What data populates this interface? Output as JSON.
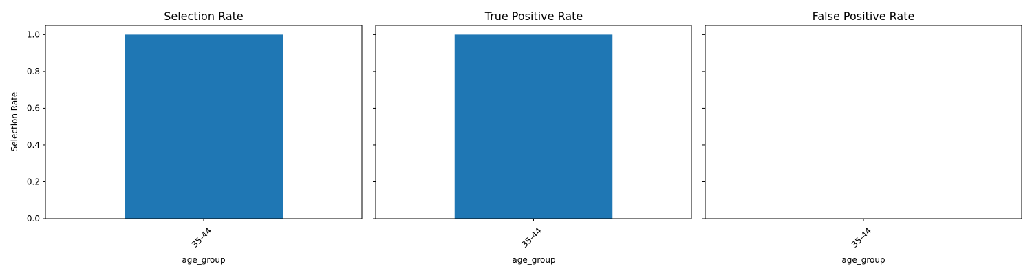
{
  "chart_data": [
    {
      "type": "bar",
      "title": "Selection Rate",
      "xlabel": "age_group",
      "ylabel": "Selection Rate",
      "categories": [
        "35-44"
      ],
      "values": [
        1.0
      ],
      "ylim": [
        0,
        1.05
      ],
      "yticks": [
        "0.0",
        "0.2",
        "0.4",
        "0.6",
        "0.8",
        "1.0"
      ],
      "show_ytick_labels": true,
      "grid": false,
      "color": "#1f77b4"
    },
    {
      "type": "bar",
      "title": "True Positive Rate",
      "xlabel": "age_group",
      "ylabel": "",
      "categories": [
        "35-44"
      ],
      "values": [
        1.0
      ],
      "ylim": [
        0,
        1.05
      ],
      "yticks": [
        "0.0",
        "0.2",
        "0.4",
        "0.6",
        "0.8",
        "1.0"
      ],
      "show_ytick_labels": false,
      "grid": false,
      "color": "#1f77b4"
    },
    {
      "type": "bar",
      "title": "False Positive Rate",
      "xlabel": "age_group",
      "ylabel": "",
      "categories": [
        "35-44"
      ],
      "values": [
        0.0
      ],
      "ylim": [
        0,
        1.05
      ],
      "yticks": [
        "0.0",
        "0.2",
        "0.4",
        "0.6",
        "0.8",
        "1.0"
      ],
      "show_ytick_labels": false,
      "grid": false,
      "color": "#1f77b4"
    }
  ]
}
